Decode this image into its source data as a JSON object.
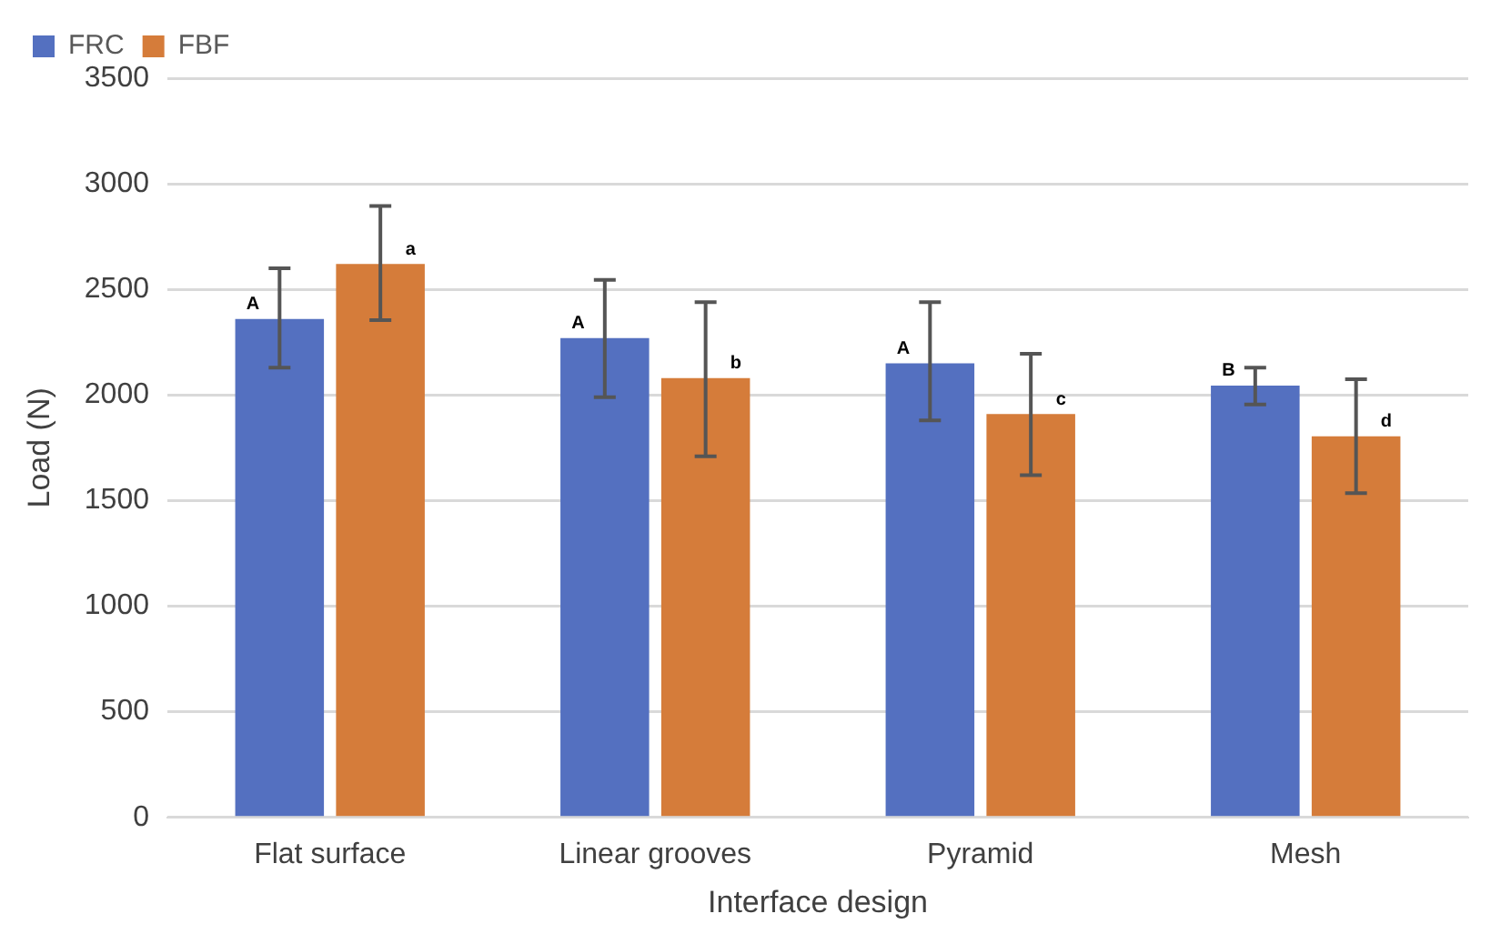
{
  "chart_data": {
    "type": "bar",
    "xlabel": "Interface design",
    "ylabel": "Load (N)",
    "categories": [
      "Flat surface",
      "Linear grooves",
      "Pyramid",
      "Mesh"
    ],
    "series": [
      {
        "name": "FRC",
        "color": "#5470c0",
        "values": [
          2360,
          2270,
          2150,
          2045
        ],
        "errors": [
          [
            2130,
            2600
          ],
          [
            1990,
            2545
          ],
          [
            1880,
            2440
          ],
          [
            1955,
            2130
          ]
        ],
        "value_labels": [
          "A",
          "A",
          "A",
          "B"
        ]
      },
      {
        "name": "FBF",
        "color": "#d57c3a",
        "values": [
          2620,
          2080,
          1910,
          1805
        ],
        "errors": [
          [
            2355,
            2895
          ],
          [
            1710,
            2440
          ],
          [
            1620,
            2195
          ],
          [
            1535,
            2075
          ]
        ],
        "value_labels": [
          "a",
          "b",
          "c",
          "d"
        ]
      }
    ],
    "ylim": [
      0,
      3500
    ],
    "yticks": [
      0,
      500,
      1000,
      1500,
      2000,
      2500,
      3000,
      3500
    ],
    "grid": "y",
    "legend": "top left"
  }
}
